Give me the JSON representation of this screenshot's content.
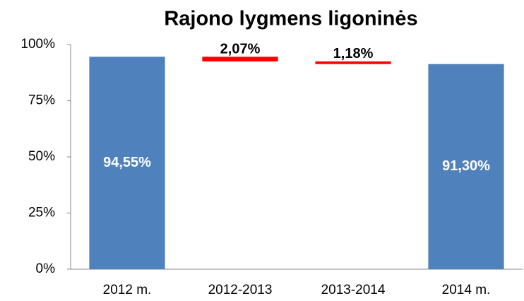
{
  "chart_data": {
    "type": "waterfall",
    "title": "Rajono lygmens ligoninės",
    "categories": [
      "2012 m.",
      "2012-2013",
      "2013-2014",
      "2014 m."
    ],
    "values": [
      94.55,
      -2.07,
      -1.18,
      91.3
    ],
    "value_labels": [
      "94,55%",
      "2,07%",
      "1,18%",
      "91,30%"
    ],
    "totals": [
      true,
      false,
      false,
      true
    ],
    "total_color": "#4f81bd",
    "decrease_color": "#ff0000",
    "ylim": [
      0,
      100
    ],
    "yticks": [
      {
        "value": 0,
        "label": "0%"
      },
      {
        "value": 25,
        "label": "25%"
      },
      {
        "value": 50,
        "label": "50%"
      },
      {
        "value": 75,
        "label": "75%"
      },
      {
        "value": 100,
        "label": "100%"
      }
    ],
    "grid": false
  }
}
